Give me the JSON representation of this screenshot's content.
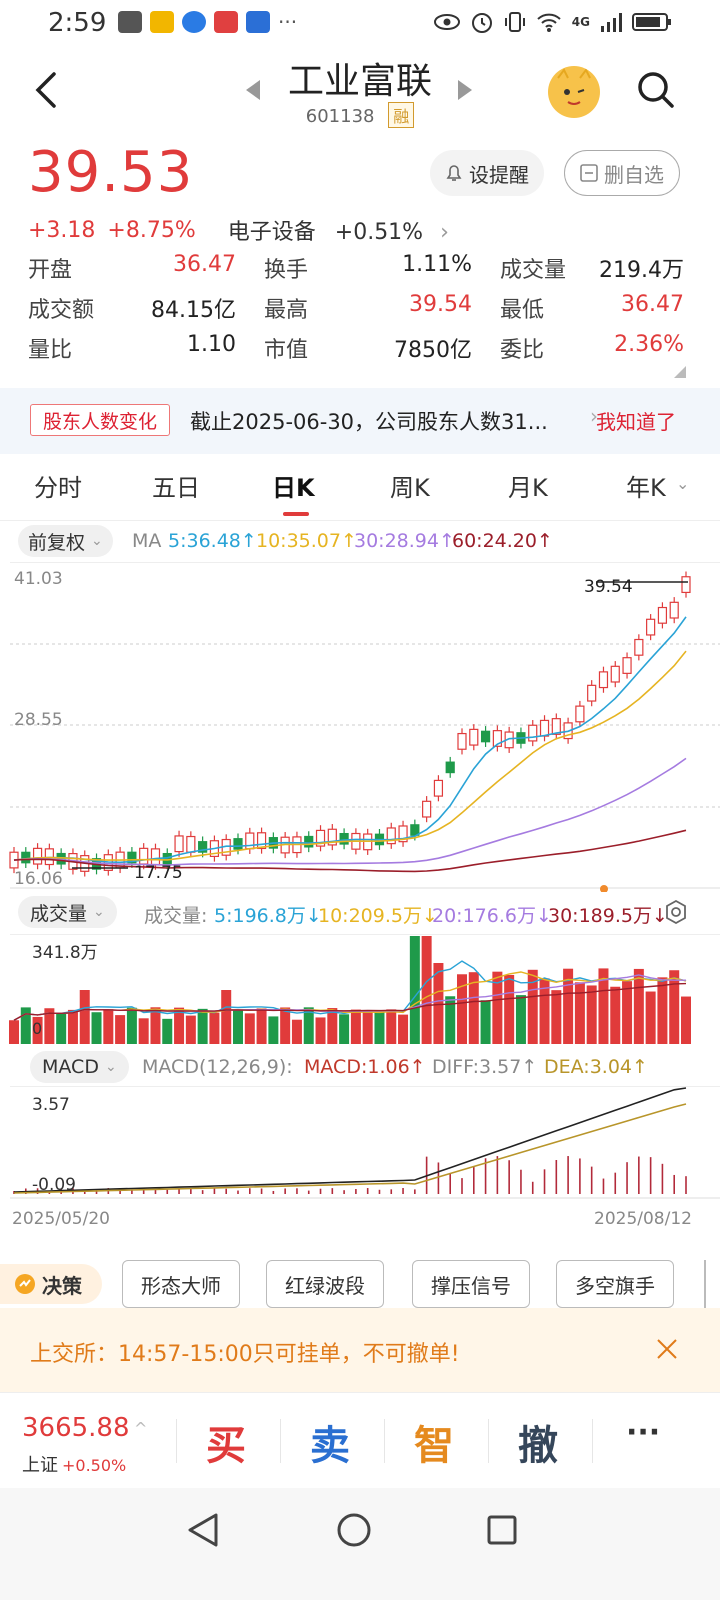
{
  "status_bar": {
    "time": "2:59",
    "network": "4G",
    "more": "···"
  },
  "header": {
    "title": "工业富联",
    "code": "601138",
    "badge": "融"
  },
  "price": {
    "last": "39.53",
    "change": "+3.18",
    "change_pct": "+8.75%",
    "sector": "电子设备",
    "sector_pct": "+0.51%"
  },
  "buttons": {
    "remind": "设提醒",
    "delete_watch": "删自选"
  },
  "quote": [
    [
      {
        "label": "开盘",
        "value": "36.47",
        "color": "red"
      },
      {
        "label": "换手",
        "value": "1.11%",
        "color": "normal"
      },
      {
        "label": "成交量",
        "value": "219.4万",
        "color": "normal"
      }
    ],
    [
      {
        "label": "成交额",
        "value": "84.15亿",
        "color": "normal"
      },
      {
        "label": "最高",
        "value": "39.54",
        "color": "red"
      },
      {
        "label": "最低",
        "value": "36.47",
        "color": "red"
      }
    ],
    [
      {
        "label": "量比",
        "value": "1.10",
        "color": "normal"
      },
      {
        "label": "市值",
        "value": "7850亿",
        "color": "normal"
      },
      {
        "label": "委比",
        "value": "2.36%",
        "color": "red"
      }
    ]
  ],
  "notice": {
    "tag": "股东人数变化",
    "text": "截止2025-06-30，公司股东人数31...",
    "action": "我知道了"
  },
  "tabs": [
    "分时",
    "五日",
    "日K",
    "周K",
    "月K",
    "年K"
  ],
  "active_tab": "日K",
  "kline": {
    "adjust": "前复权",
    "ma_label": "MA",
    "ma5": "5:36.48↑",
    "ma10": "10:35.07↑",
    "ma30": "30:28.94↑",
    "ma60": "60:24.20↑",
    "y_top": "41.03",
    "y_mid": "28.55",
    "y_bottom": "16.06",
    "high_mark": "39.54",
    "low_mark": "17.75"
  },
  "volume": {
    "selector": "成交量",
    "label": "成交量:",
    "ma5": "5:196.8万↓",
    "ma10": "10:209.5万↓",
    "ma20": "20:176.6万↓",
    "ma30": "30:189.5万↓",
    "y_top": "341.8万",
    "zero": "0"
  },
  "macd": {
    "selector": "MACD",
    "params": "MACD(12,26,9):",
    "macd": "MACD:1.06↑",
    "diff": "DIFF:3.57↑",
    "dea": "DEA:3.04↑",
    "y_top": "3.57",
    "y_bottom": "-0.09",
    "date_start": "2025/05/20",
    "date_end": "2025/08/12"
  },
  "decision": {
    "badge": "决策",
    "tools": [
      "形态大师",
      "红绿波段",
      "撑压信号",
      "多空旗手"
    ]
  },
  "alert": {
    "text": "上交所：14:57-15:00只可挂单，不可撤单!"
  },
  "bottom": {
    "index_value": "3665.88",
    "index_name": "上证",
    "index_chg": "+0.50%",
    "buy": "买",
    "sell": "卖",
    "smart": "智",
    "cancel": "撤",
    "more": "···"
  },
  "colors": {
    "up": "#e03b3b",
    "down": "#1f9a4a",
    "ma5": "#2aa3d6",
    "ma10": "#e6b422",
    "ma30": "#a57be0",
    "ma60": "#9b1e2a"
  }
}
